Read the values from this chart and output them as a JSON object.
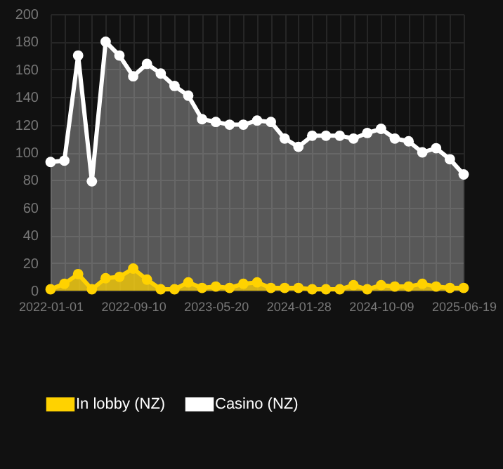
{
  "chart_data": {
    "type": "area",
    "categories": [
      "2022-01-01",
      null,
      null,
      null,
      null,
      null,
      "2022-09-10",
      null,
      null,
      null,
      null,
      null,
      "2023-05-20",
      null,
      null,
      null,
      null,
      null,
      "2024-01-28",
      null,
      null,
      null,
      null,
      null,
      "2024-10-09",
      null,
      null,
      null,
      null,
      null,
      "2025-06-19"
    ],
    "series": [
      {
        "name": "In lobby (NZ)",
        "color": "#ffd200",
        "values": [
          1,
          5,
          12,
          1,
          9,
          10,
          16,
          8,
          1,
          1,
          6,
          2,
          3,
          2,
          5,
          6,
          2,
          2,
          2,
          1,
          1,
          1,
          4,
          1,
          4,
          3,
          3,
          5,
          3,
          2,
          2
        ]
      },
      {
        "name": "Casino (NZ)",
        "color": "#ffffff",
        "values": [
          93,
          94,
          170,
          79,
          180,
          170,
          155,
          164,
          157,
          148,
          141,
          124,
          122,
          120,
          120,
          123,
          122,
          110,
          104,
          112,
          112,
          112,
          110,
          114,
          117,
          110,
          108,
          100,
          103,
          95,
          84
        ]
      }
    ],
    "ylim": [
      0,
      200
    ],
    "yticks": [
      0,
      20,
      40,
      60,
      80,
      100,
      120,
      140,
      160,
      180,
      200
    ],
    "grid": true,
    "legend": "bottom",
    "marker": "circle"
  }
}
